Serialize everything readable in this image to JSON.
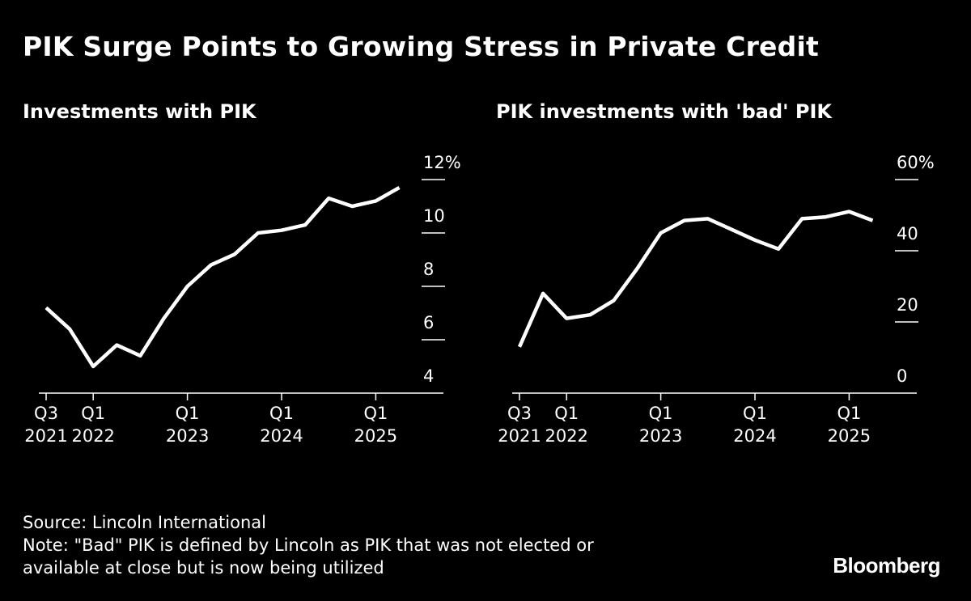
{
  "title": "PIK Surge Points to Growing Stress in Private Credit",
  "colors": {
    "background": "#000000",
    "foreground": "#ffffff"
  },
  "chart_data": [
    {
      "type": "line",
      "title": "Investments with PIK",
      "x": [
        "Q3 2021",
        "Q4 2021",
        "Q1 2022",
        "Q2 2022",
        "Q3 2022",
        "Q4 2022",
        "Q1 2023",
        "Q2 2023",
        "Q3 2023",
        "Q4 2023",
        "Q1 2024",
        "Q2 2024",
        "Q3 2024",
        "Q4 2024",
        "Q1 2025",
        "Q2 2025"
      ],
      "series": [
        {
          "values": [
            7.2,
            6.4,
            5.0,
            5.8,
            5.4,
            6.8,
            8.0,
            8.8,
            9.2,
            10.0,
            10.1,
            10.3,
            11.3,
            11.0,
            11.2,
            11.7
          ]
        }
      ],
      "ylim": [
        4,
        12
      ],
      "yticks": [
        4,
        6,
        8,
        10,
        12
      ],
      "ytick_labels": [
        "4",
        "6",
        "8",
        "10",
        "12%"
      ],
      "xtick_labels": [
        {
          "top": "Q3",
          "bottom": "2021"
        },
        {
          "top": "Q1",
          "bottom": "2022"
        },
        {
          "top": "Q1",
          "bottom": "2023"
        },
        {
          "top": "Q1",
          "bottom": "2024"
        },
        {
          "top": "Q1",
          "bottom": "2025"
        }
      ],
      "xtick_index": [
        0,
        2,
        6,
        10,
        14
      ],
      "grid": false
    },
    {
      "type": "line",
      "title": "PIK investments with 'bad' PIK",
      "x": [
        "Q3 2021",
        "Q4 2021",
        "Q1 2022",
        "Q2 2022",
        "Q3 2022",
        "Q4 2022",
        "Q1 2023",
        "Q2 2023",
        "Q3 2023",
        "Q4 2023",
        "Q1 2024",
        "Q2 2024",
        "Q3 2024",
        "Q4 2024",
        "Q1 2025",
        "Q2 2025"
      ],
      "series": [
        {
          "values": [
            13,
            28,
            21,
            22,
            26,
            35,
            45,
            48.5,
            49,
            46,
            43,
            40.5,
            49,
            49.5,
            51,
            48.5
          ]
        }
      ],
      "ylim": [
        0,
        60
      ],
      "yticks": [
        0,
        20,
        40,
        60
      ],
      "ytick_labels": [
        "0",
        "20",
        "40",
        "60%"
      ],
      "xtick_labels": [
        {
          "top": "Q3",
          "bottom": "2021"
        },
        {
          "top": "Q1",
          "bottom": "2022"
        },
        {
          "top": "Q1",
          "bottom": "2023"
        },
        {
          "top": "Q1",
          "bottom": "2024"
        },
        {
          "top": "Q1",
          "bottom": "2025"
        }
      ],
      "xtick_index": [
        0,
        2,
        6,
        10,
        14
      ],
      "grid": false
    }
  ],
  "footer": {
    "source": "Source: Lincoln International",
    "note_line1": "Note: \"Bad\" PIK is defined by Lincoln as PIK that was not elected or",
    "note_line2": "available at close but is now being utilized"
  },
  "brand": "Bloomberg"
}
